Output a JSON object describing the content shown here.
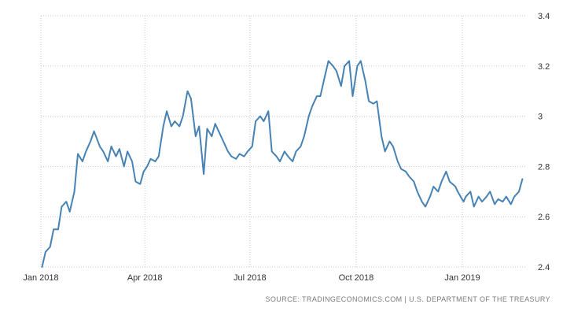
{
  "chart_data": {
    "type": "line",
    "title": "",
    "xlabel": "",
    "ylabel": "",
    "ylim": [
      2.4,
      3.4
    ],
    "xlim": [
      "2018-01-02",
      "2019-02-22"
    ],
    "grid": true,
    "y_ticks": [
      {
        "value": 2.4,
        "label": "2.4"
      },
      {
        "value": 2.6,
        "label": "2.6"
      },
      {
        "value": 2.8,
        "label": "2.8"
      },
      {
        "value": 3.0,
        "label": "3"
      },
      {
        "value": 3.2,
        "label": "3.2"
      },
      {
        "value": 3.4,
        "label": "3.4"
      }
    ],
    "x_ticks": [
      {
        "date": "2018-01-01",
        "label": "Jan 2018"
      },
      {
        "date": "2018-04-01",
        "label": "Apr 2018"
      },
      {
        "date": "2018-07-01",
        "label": "Jul 2018"
      },
      {
        "date": "2018-10-01",
        "label": "Oct 2018"
      },
      {
        "date": "2019-01-01",
        "label": "Jan 2019"
      }
    ],
    "series": [
      {
        "color": "#4682b4",
        "x": [
          "2018-01-02",
          "2018-01-05",
          "2018-01-09",
          "2018-01-12",
          "2018-01-16",
          "2018-01-19",
          "2018-01-23",
          "2018-01-26",
          "2018-01-30",
          "2018-02-02",
          "2018-02-06",
          "2018-02-09",
          "2018-02-13",
          "2018-02-16",
          "2018-02-21",
          "2018-02-24",
          "2018-02-28",
          "2018-03-03",
          "2018-03-07",
          "2018-03-10",
          "2018-03-14",
          "2018-03-17",
          "2018-03-21",
          "2018-03-24",
          "2018-03-28",
          "2018-03-31",
          "2018-04-03",
          "2018-04-06",
          "2018-04-10",
          "2018-04-13",
          "2018-04-17",
          "2018-04-20",
          "2018-04-24",
          "2018-04-27",
          "2018-05-01",
          "2018-05-04",
          "2018-05-08",
          "2018-05-11",
          "2018-05-15",
          "2018-05-18",
          "2018-05-22",
          "2018-05-25",
          "2018-05-29",
          "2018-06-01",
          "2018-06-05",
          "2018-06-08",
          "2018-06-12",
          "2018-06-15",
          "2018-06-19",
          "2018-06-22",
          "2018-06-26",
          "2018-06-29",
          "2018-07-03",
          "2018-07-06",
          "2018-07-10",
          "2018-07-13",
          "2018-07-17",
          "2018-07-20",
          "2018-07-24",
          "2018-07-27",
          "2018-07-31",
          "2018-08-03",
          "2018-08-07",
          "2018-08-10",
          "2018-08-14",
          "2018-08-17",
          "2018-08-21",
          "2018-08-24",
          "2018-08-28",
          "2018-08-31",
          "2018-09-04",
          "2018-09-07",
          "2018-09-11",
          "2018-09-14",
          "2018-09-18",
          "2018-09-21",
          "2018-09-25",
          "2018-09-28",
          "2018-10-02",
          "2018-10-05",
          "2018-10-09",
          "2018-10-12",
          "2018-10-16",
          "2018-10-19",
          "2018-10-23",
          "2018-10-26",
          "2018-10-30",
          "2018-11-02",
          "2018-11-06",
          "2018-11-09",
          "2018-11-13",
          "2018-11-16",
          "2018-11-20",
          "2018-11-23",
          "2018-11-27",
          "2018-11-30",
          "2018-12-04",
          "2018-12-07",
          "2018-12-11",
          "2018-12-14",
          "2018-12-18",
          "2018-12-21",
          "2018-12-26",
          "2018-12-28",
          "2019-01-02",
          "2019-01-04",
          "2019-01-08",
          "2019-01-11",
          "2019-01-15",
          "2019-01-18",
          "2019-01-22",
          "2019-01-25",
          "2019-01-29",
          "2019-02-01",
          "2019-02-05",
          "2019-02-08",
          "2019-02-12",
          "2019-02-15",
          "2019-02-19",
          "2019-02-22"
        ],
        "y": [
          2.4,
          2.46,
          2.48,
          2.55,
          2.55,
          2.64,
          2.66,
          2.62,
          2.7,
          2.85,
          2.82,
          2.86,
          2.9,
          2.94,
          2.88,
          2.86,
          2.82,
          2.88,
          2.84,
          2.87,
          2.8,
          2.86,
          2.82,
          2.74,
          2.73,
          2.78,
          2.8,
          2.83,
          2.82,
          2.84,
          2.96,
          3.02,
          2.96,
          2.98,
          2.96,
          3.0,
          3.1,
          3.07,
          2.92,
          2.96,
          2.77,
          2.95,
          2.92,
          2.97,
          2.93,
          2.9,
          2.86,
          2.84,
          2.83,
          2.85,
          2.84,
          2.86,
          2.88,
          2.98,
          3.0,
          2.98,
          3.02,
          2.86,
          2.84,
          2.82,
          2.86,
          2.84,
          2.82,
          2.86,
          2.88,
          2.92,
          3.0,
          3.04,
          3.08,
          3.08,
          3.16,
          3.22,
          3.2,
          3.18,
          3.12,
          3.2,
          3.22,
          3.08,
          3.2,
          3.22,
          3.14,
          3.06,
          3.05,
          3.06,
          2.92,
          2.86,
          2.9,
          2.88,
          2.82,
          2.79,
          2.78,
          2.76,
          2.74,
          2.7,
          2.66,
          2.64,
          2.68,
          2.72,
          2.7,
          2.74,
          2.78,
          2.74,
          2.72,
          2.7,
          2.66,
          2.68,
          2.7,
          2.64,
          2.68,
          2.66,
          2.68,
          2.7,
          2.65,
          2.67,
          2.66,
          2.68,
          2.65,
          2.68,
          2.7,
          2.75
        ]
      }
    ]
  },
  "source": "SOURCE: TRADINGECONOMICS.COM  |  U.S. DEPARTMENT OF THE TREASURY"
}
